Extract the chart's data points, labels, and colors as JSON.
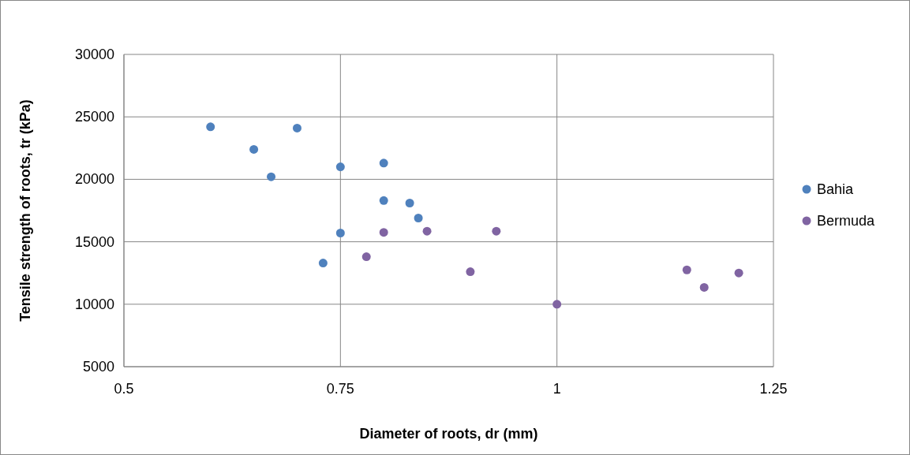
{
  "chart_data": {
    "type": "scatter",
    "xlabel": "Diameter of roots, dr (mm)",
    "ylabel": "Tensile strength of roots, tr (kPa)",
    "xlim": [
      0.5,
      1.25
    ],
    "xticks": [
      0.5,
      0.75,
      1,
      1.25
    ],
    "ylim": [
      5000,
      30000
    ],
    "yticks": [
      5000,
      10000,
      15000,
      20000,
      25000,
      30000
    ],
    "grid": true,
    "legend": "right",
    "marker": "circle",
    "series": [
      {
        "name": "Bahia",
        "color": "#4f81bd",
        "x": [
          0.6,
          0.65,
          0.67,
          0.7,
          0.75,
          0.8,
          0.8,
          0.83,
          0.84,
          0.75,
          0.73
        ],
        "values": [
          24200,
          22400,
          20200,
          24100,
          21000,
          21300,
          18300,
          18100,
          16900,
          15700,
          13300
        ]
      },
      {
        "name": "Bermuda",
        "color": "#8064a2",
        "x": [
          0.8,
          0.85,
          0.93,
          0.78,
          0.9,
          1,
          1.15,
          1.17,
          1.21
        ],
        "values": [
          15750,
          15850,
          15850,
          13800,
          12600,
          10000,
          12750,
          11350,
          12500
        ]
      }
    ]
  }
}
